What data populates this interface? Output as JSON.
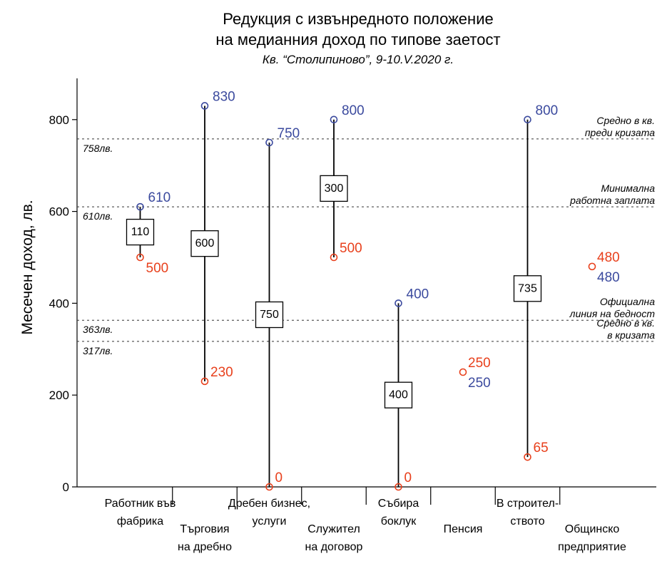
{
  "chart_data": {
    "type": "range",
    "title_lines": [
      "Редукция с извънредното положение",
      "на медианния доход по типове заетост"
    ],
    "subtitle": "Кв. “Столипиново”, 9-10.V.2020 г.",
    "ylabel": "Месечен доход, лв.",
    "ylim": [
      0,
      890
    ],
    "yticks": [
      0,
      200,
      400,
      600,
      800
    ],
    "colors": {
      "before": "#3b4a9e",
      "during": "#e8401c",
      "line": "#000000"
    },
    "categories": [
      {
        "label": [
          "Работник във",
          "фабрика"
        ],
        "label_row": "upper",
        "before": 610,
        "during": 500,
        "reduction": 110,
        "box_center": 555
      },
      {
        "label": [
          "Търговия",
          "на дребно"
        ],
        "label_row": "lower",
        "before": 830,
        "during": 230,
        "reduction": 600,
        "box_center": 530
      },
      {
        "label": [
          "Дребен бизнес,",
          "услуги"
        ],
        "label_row": "upper",
        "before": 750,
        "during": 0,
        "reduction": 750,
        "box_center": 375
      },
      {
        "label": [
          "Служител",
          "на договор"
        ],
        "label_row": "lower",
        "before": 800,
        "during": 500,
        "reduction": 300,
        "box_center": 650
      },
      {
        "label": [
          "Събира",
          "боклук"
        ],
        "label_row": "upper",
        "before": 400,
        "during": 0,
        "reduction": 400,
        "box_center": 200
      },
      {
        "label": [
          "Пенсия"
        ],
        "label_row": "lower",
        "before": 250,
        "during": 250,
        "reduction": null,
        "box_center": null
      },
      {
        "label": [
          "В строител-",
          "ството"
        ],
        "label_row": "upper",
        "before": 800,
        "during": 65,
        "reduction": 735,
        "box_center": 432
      },
      {
        "label": [
          "Общинско",
          "предприятие"
        ],
        "label_row": "lower",
        "before": 480,
        "during": 480,
        "reduction": null,
        "box_center": null
      }
    ],
    "reference_lines": [
      {
        "value": 758,
        "left_label": "758лв.",
        "right_label": [
          "Средно в кв.",
          "преди кризата"
        ]
      },
      {
        "value": 610,
        "left_label": "610лв.",
        "right_label": [
          "Минимална",
          "работна заплата"
        ]
      },
      {
        "value": 363,
        "left_label": "363лв.",
        "right_label": [
          "Официална",
          "линия на бедност"
        ]
      },
      {
        "value": 317,
        "left_label": "317лв.",
        "right_label": [
          "Средно в кв.",
          "в кризата"
        ]
      }
    ]
  }
}
